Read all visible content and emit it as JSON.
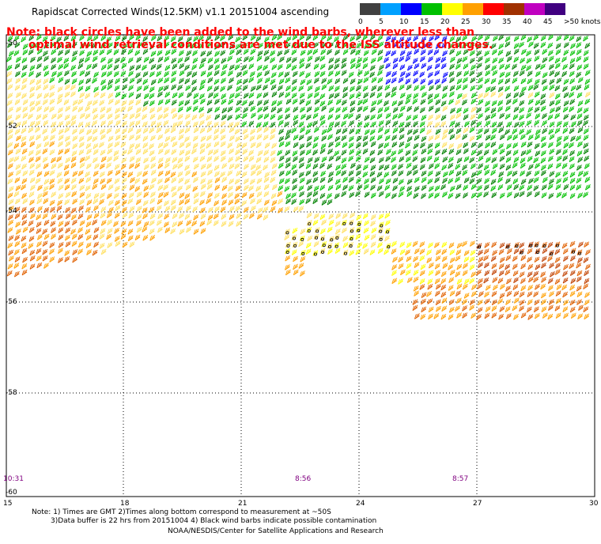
{
  "title": "Rapidscat Corrected Winds(12.5KM) v1.1 20151004 ascending",
  "note": {
    "line1": "Note: black circles have been added to the wind barbs, wherever less than",
    "line2": "optimal wind retrieval conditions are met due to the ISS altitude changes."
  },
  "legend": {
    "colors": [
      "#404040",
      "#00a0ff",
      "#0000ff",
      "#00c000",
      "#ffff00",
      "#ffa000",
      "#ff0000",
      "#a03000",
      "#c000c0",
      "#400080"
    ],
    "labels": [
      "0",
      "5",
      "10",
      "15",
      "20",
      "25",
      "30",
      "35",
      "40",
      "45",
      ">50 knots"
    ]
  },
  "lat_labels": [
    "-50",
    "-52",
    "-54",
    "-56",
    "-58",
    "-60"
  ],
  "lon_labels": [
    "15",
    "18",
    "21",
    "24",
    "27",
    "30"
  ],
  "times": [
    "10:31",
    "8:56",
    "8:57"
  ],
  "footer": {
    "line1": "Note: 1) Times are GMT 2)Times along bottom correspond to measurement at ~50S",
    "line2": "3)Data buffer is 22 hrs from 20151004 4) Black wind barbs indicate possible contamination",
    "line3": "NOAA/NESDIS/Center for Satellite Applications and Research"
  }
}
